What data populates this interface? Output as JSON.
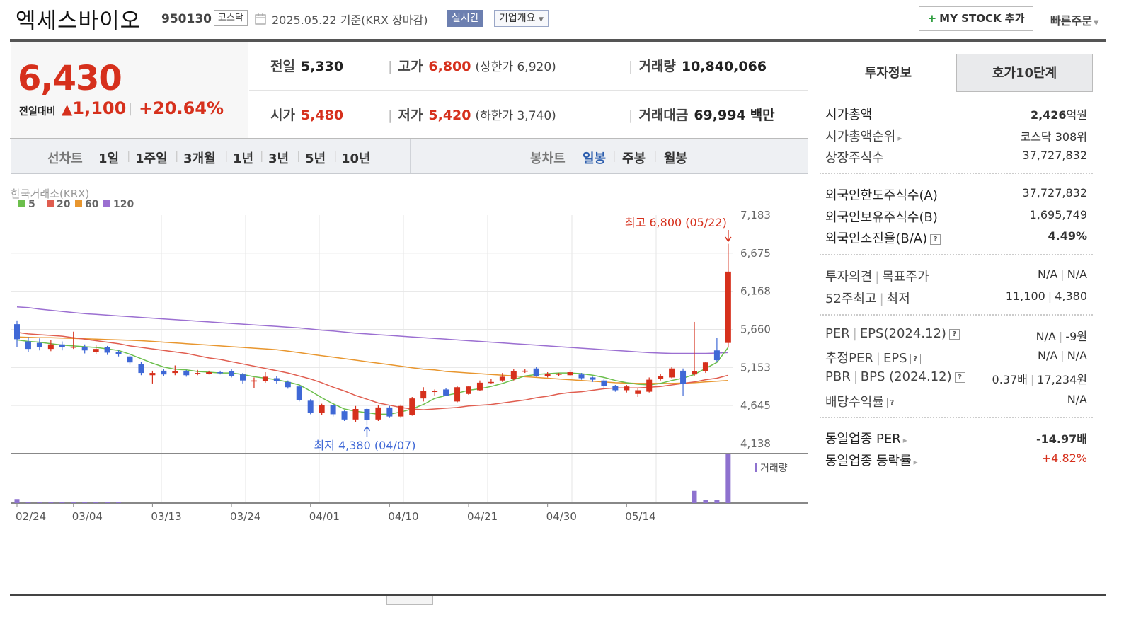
{
  "header": {
    "name": "엑세스바이오",
    "code": "950130",
    "market": "코스닥",
    "date": "2025.05.22 기준(KRX 장마감)",
    "realtime": "실시간",
    "company_info": "기업개요",
    "mystock": "MY STOCK 추가",
    "quick_order": "빠른주문"
  },
  "price": {
    "current": "6,430",
    "change_label": "전일대비",
    "change": "1,100",
    "change_pct": "+20.64%"
  },
  "stats": {
    "prev_label": "전일",
    "prev": "5,330",
    "high_label": "고가",
    "high": "6,800",
    "upper_limit": "(상한가 6,920)",
    "volume_label": "거래량",
    "volume": "10,840,066",
    "open_label": "시가",
    "open": "5,480",
    "low_label": "저가",
    "low": "5,420",
    "lower_limit": "(하한가 3,740)",
    "amount_label": "거래대금",
    "amount": "69,994",
    "amount_unit": "백만"
  },
  "toolbar": {
    "line_chart": "선차트",
    "periods": [
      "1일",
      "1주일",
      "3개월",
      "1년",
      "3년",
      "5년",
      "10년"
    ],
    "candle_chart": "봉차트",
    "candle_periods": [
      "일봉",
      "주봉",
      "월봉"
    ]
  },
  "colors": {
    "up": "#d6301c",
    "down": "#3f68d6",
    "ma5": "#6cbf4c",
    "ma20": "#e05d4f",
    "ma60": "#e8962e",
    "ma120": "#9b6fd1"
  },
  "chart_data": {
    "type": "candlestick",
    "source": "한국거래소(KRX)",
    "legend": [
      "5",
      "20",
      "60",
      "120"
    ],
    "y_ticks": [
      "7,183",
      "6,675",
      "6,168",
      "5,660",
      "5,153",
      "4,645",
      "4,138"
    ],
    "ylim": [
      4138,
      7183
    ],
    "x_ticks": [
      {
        "i": 0,
        "label": "02/24"
      },
      {
        "i": 5,
        "label": "03/04"
      },
      {
        "i": 12,
        "label": "03/13"
      },
      {
        "i": 19,
        "label": "03/24"
      },
      {
        "i": 26,
        "label": "04/01"
      },
      {
        "i": 33,
        "label": "04/10"
      },
      {
        "i": 40,
        "label": "04/21"
      },
      {
        "i": 47,
        "label": "04/30"
      },
      {
        "i": 54,
        "label": "05/14"
      }
    ],
    "max_annotation": "최고 6,800 (05/22)",
    "min_annotation": "최저 4,380 (04/07)",
    "volume_label": "거래량",
    "candles": [
      [
        5730,
        5530,
        5780,
        5420
      ],
      [
        5500,
        5400,
        5560,
        5360
      ],
      [
        5480,
        5420,
        5540,
        5380
      ],
      [
        5400,
        5460,
        5520,
        5370
      ],
      [
        5460,
        5420,
        5500,
        5380
      ],
      [
        5430,
        5430,
        5630,
        5400
      ],
      [
        5430,
        5380,
        5460,
        5340
      ],
      [
        5360,
        5400,
        5450,
        5330
      ],
      [
        5420,
        5350,
        5440,
        5320
      ],
      [
        5360,
        5330,
        5380,
        5300
      ],
      [
        5300,
        5220,
        5330,
        5190
      ],
      [
        5200,
        5080,
        5230,
        5050
      ],
      [
        5050,
        5080,
        5110,
        4940
      ],
      [
        5110,
        5060,
        5130,
        5040
      ],
      [
        5080,
        5100,
        5180,
        5050
      ],
      [
        5100,
        5050,
        5120,
        5030
      ],
      [
        5080,
        5080,
        5120,
        5050
      ],
      [
        5070,
        5090,
        5110,
        5060
      ],
      [
        5090,
        5080,
        5110,
        5060
      ],
      [
        5100,
        5040,
        5130,
        5020
      ],
      [
        5060,
        4980,
        5080,
        4940
      ],
      [
        4980,
        4980,
        5020,
        4880
      ],
      [
        4970,
        5030,
        5090,
        4950
      ],
      [
        5010,
        4970,
        5040,
        4940
      ],
      [
        4960,
        4890,
        4980,
        4870
      ],
      [
        4900,
        4720,
        4920,
        4700
      ],
      [
        4710,
        4550,
        4730,
        4530
      ],
      [
        4550,
        4650,
        4670,
        4520
      ],
      [
        4650,
        4530,
        4660,
        4500
      ],
      [
        4570,
        4460,
        4580,
        4440
      ],
      [
        4460,
        4600,
        4640,
        4430
      ],
      [
        4600,
        4450,
        4620,
        4380
      ],
      [
        4460,
        4620,
        4650,
        4440
      ],
      [
        4620,
        4500,
        4640,
        4480
      ],
      [
        4500,
        4640,
        4660,
        4480
      ],
      [
        4520,
        4740,
        4760,
        4510
      ],
      [
        4740,
        4840,
        4890,
        4700
      ],
      [
        4830,
        4840,
        4860,
        4780
      ],
      [
        4860,
        4780,
        4880,
        4770
      ],
      [
        4700,
        4890,
        4900,
        4690
      ],
      [
        4800,
        4900,
        4910,
        4790
      ],
      [
        4850,
        4950,
        4980,
        4840
      ],
      [
        4950,
        4960,
        5000,
        4940
      ],
      [
        4980,
        5030,
        5080,
        4960
      ],
      [
        5000,
        5100,
        5130,
        4980
      ],
      [
        5100,
        5110,
        5130,
        5080
      ],
      [
        5140,
        5040,
        5160,
        5030
      ],
      [
        5040,
        5070,
        5090,
        5020
      ],
      [
        5060,
        5070,
        5080,
        5040
      ],
      [
        5050,
        5090,
        5120,
        5040
      ],
      [
        5060,
        5010,
        5080,
        4990
      ],
      [
        5020,
        4990,
        5030,
        4960
      ],
      [
        4980,
        4910,
        5010,
        4870
      ],
      [
        4910,
        4850,
        4920,
        4830
      ],
      [
        4850,
        4900,
        4920,
        4820
      ],
      [
        4800,
        4850,
        4880,
        4760
      ],
      [
        4830,
        4990,
        5020,
        4820
      ],
      [
        5000,
        5040,
        5070,
        4980
      ],
      [
        5020,
        5140,
        5160,
        5010
      ],
      [
        5110,
        4930,
        5140,
        4770
      ],
      [
        5060,
        5100,
        5760,
        5040
      ],
      [
        5100,
        5220,
        5230,
        5080
      ],
      [
        5380,
        5250,
        5550,
        5230
      ],
      [
        5480,
        6430,
        6800,
        5420
      ]
    ],
    "ma5": [
      5520,
      5500,
      5490,
      5470,
      5450,
      5440,
      5430,
      5420,
      5400,
      5380,
      5330,
      5270,
      5210,
      5160,
      5130,
      5120,
      5100,
      5090,
      5080,
      5080,
      5060,
      5030,
      5010,
      4990,
      4960,
      4920,
      4840,
      4750,
      4670,
      4600,
      4570,
      4550,
      4530,
      4530,
      4560,
      4600,
      4660,
      4740,
      4780,
      4810,
      4850,
      4870,
      4900,
      4940,
      4990,
      5040,
      5060,
      5070,
      5080,
      5080,
      5070,
      5050,
      5020,
      4980,
      4950,
      4930,
      4920,
      4940,
      4980,
      5010,
      5060,
      5140,
      5220,
      5420
    ],
    "ma20": [
      5620,
      5600,
      5590,
      5580,
      5570,
      5550,
      5530,
      5510,
      5490,
      5470,
      5440,
      5420,
      5400,
      5380,
      5360,
      5340,
      5310,
      5280,
      5260,
      5230,
      5200,
      5170,
      5140,
      5110,
      5080,
      5040,
      5000,
      4950,
      4890,
      4840,
      4780,
      4730,
      4680,
      4650,
      4620,
      4600,
      4590,
      4600,
      4610,
      4620,
      4640,
      4650,
      4660,
      4680,
      4700,
      4720,
      4750,
      4770,
      4800,
      4820,
      4830,
      4850,
      4870,
      4880,
      4880,
      4880,
      4890,
      4900,
      4920,
      4940,
      4960,
      4990,
      5010,
      5050
    ],
    "ma60": [
      5560,
      5555,
      5550,
      5550,
      5545,
      5540,
      5535,
      5530,
      5525,
      5520,
      5515,
      5510,
      5500,
      5490,
      5480,
      5470,
      5460,
      5450,
      5440,
      5430,
      5420,
      5410,
      5400,
      5390,
      5370,
      5350,
      5330,
      5310,
      5290,
      5270,
      5250,
      5230,
      5210,
      5190,
      5170,
      5150,
      5130,
      5120,
      5100,
      5090,
      5080,
      5070,
      5060,
      5050,
      5040,
      5030,
      5020,
      5010,
      5000,
      4990,
      4980,
      4970,
      4960,
      4950,
      4945,
      4940,
      4940,
      4940,
      4940,
      4945,
      4950,
      4960,
      4970,
      4980
    ],
    "ma120": [
      5960,
      5950,
      5930,
      5915,
      5900,
      5885,
      5870,
      5860,
      5850,
      5840,
      5830,
      5820,
      5810,
      5800,
      5790,
      5780,
      5770,
      5760,
      5750,
      5740,
      5730,
      5720,
      5710,
      5700,
      5690,
      5680,
      5665,
      5650,
      5640,
      5625,
      5610,
      5600,
      5590,
      5580,
      5570,
      5560,
      5550,
      5540,
      5530,
      5520,
      5510,
      5500,
      5490,
      5480,
      5470,
      5460,
      5450,
      5440,
      5430,
      5420,
      5410,
      5400,
      5390,
      5380,
      5370,
      5360,
      5350,
      5345,
      5340,
      5340,
      5340,
      5340,
      5345,
      5350
    ],
    "volume": [
      3,
      0.5,
      0.5,
      0.5,
      0.5,
      0.5,
      0.5,
      0.5,
      0.5,
      0.5,
      0,
      0,
      0,
      0,
      0,
      0,
      0,
      0,
      0,
      0,
      0,
      0,
      0,
      0,
      0,
      0,
      0,
      0,
      0,
      0,
      0,
      0,
      0,
      0,
      0,
      0,
      0,
      0,
      0,
      0,
      0,
      0,
      0,
      0,
      0,
      0,
      0,
      0,
      0,
      0,
      0,
      0,
      0,
      0,
      0,
      0,
      0,
      0,
      0,
      0,
      9,
      2.5,
      2.5,
      36
    ]
  },
  "right_panel": {
    "tabs": [
      "투자정보",
      "호가10단계"
    ],
    "g1": [
      {
        "label": "시가총액",
        "value": "2,426",
        "unit": "억원"
      },
      {
        "label": "시가총액순위",
        "value": "코스닥 308위"
      },
      {
        "label": "상장주식수",
        "value": "37,727,832"
      }
    ],
    "g2": [
      {
        "label": "외국인한도주식수(A)",
        "value": "37,727,832"
      },
      {
        "label": "외국인보유주식수(B)",
        "value": "1,695,749"
      },
      {
        "label": "외국인소진율(B/A)",
        "value": "4.49%"
      }
    ],
    "g3": {
      "opinion_label": "투자의견",
      "target_label": "목표주가",
      "opinion_val": "N/A",
      "target_val": "N/A",
      "w52_label": "52주최고",
      "w52_low_label": "최저",
      "w52_high": "11,100",
      "w52_low": "4,380"
    },
    "g4": {
      "per_label": "PER",
      "eps_label": "EPS(2024.12)",
      "per": "N/A",
      "eps": "-9원",
      "fper_label": "추정PER",
      "feps_label": "EPS",
      "fper": "N/A",
      "feps": "N/A",
      "pbr_label": "PBR",
      "bps_label": "BPS (2024.12)",
      "pbr": "0.37배",
      "bps": "17,234원",
      "div_label": "배당수익률",
      "div": "N/A"
    },
    "g5": [
      {
        "label": "동일업종 PER",
        "value": "-14.97배"
      },
      {
        "label": "동일업종 등락률",
        "value": "+4.82%"
      }
    ]
  }
}
